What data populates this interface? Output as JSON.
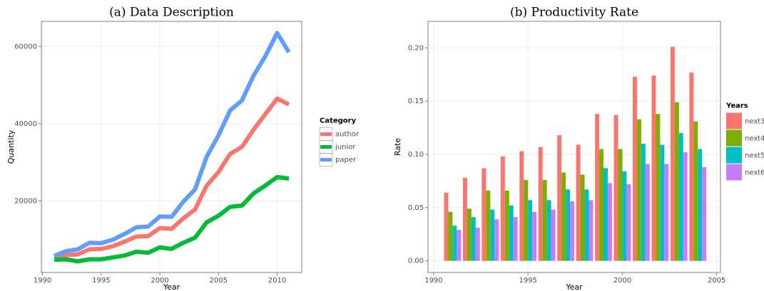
{
  "chart_data": [
    {
      "type": "line",
      "title": "(a) Data Description",
      "x_label": "Year",
      "y_label": "Quantity",
      "x": [
        1991,
        1992,
        1993,
        1994,
        1995,
        1996,
        1997,
        1998,
        1999,
        2000,
        2001,
        2002,
        2003,
        2004,
        2005,
        2006,
        2007,
        2008,
        2009,
        2010,
        2011
      ],
      "series": [
        {
          "name": "author",
          "color": "#F8766D",
          "values": [
            5500,
            6000,
            6200,
            7500,
            7600,
            8300,
            9500,
            10800,
            10900,
            13000,
            12800,
            15500,
            17800,
            24000,
            27500,
            32200,
            34000,
            38500,
            42500,
            46500,
            45000
          ]
        },
        {
          "name": "junior",
          "color": "#00BA38",
          "values": [
            4800,
            4900,
            4400,
            4900,
            4900,
            5400,
            5900,
            6900,
            6600,
            8000,
            7600,
            9200,
            10500,
            14500,
            16200,
            18500,
            18800,
            22000,
            24000,
            26200,
            25800
          ]
        },
        {
          "name": "paper",
          "color": "#619CFF",
          "values": [
            5800,
            7000,
            7500,
            9200,
            9100,
            10000,
            11500,
            13200,
            13400,
            16000,
            15900,
            19800,
            23000,
            31500,
            37000,
            43500,
            46000,
            52500,
            57500,
            63500,
            58500
          ]
        }
      ],
      "legend_title": "Category",
      "xlim": [
        1989.9,
        2012.1
      ],
      "xticks": [
        1990,
        1995,
        2000,
        2005,
        2010
      ],
      "ylim": [
        1500,
        66500
      ],
      "yticks": [
        20000,
        40000,
        60000
      ],
      "grid": true
    },
    {
      "type": "bar",
      "title": "(b) Productivity Rate",
      "x_label": "Year",
      "y_label": "Rate",
      "x": [
        1991,
        1992,
        1993,
        1994,
        1995,
        1996,
        1997,
        1998,
        1999,
        2000,
        2001,
        2002,
        2003,
        2004
      ],
      "series": [
        {
          "name": "next3",
          "color": "#F8766D",
          "values": [
            0.064,
            0.078,
            0.087,
            0.098,
            0.103,
            0.107,
            0.118,
            0.109,
            0.138,
            0.137,
            0.173,
            0.174,
            0.201,
            0.177
          ]
        },
        {
          "name": "next4",
          "color": "#7CAE00",
          "values": [
            0.046,
            0.049,
            0.066,
            0.066,
            0.076,
            0.076,
            0.083,
            0.081,
            0.105,
            0.105,
            0.133,
            0.138,
            0.149,
            0.131
          ]
        },
        {
          "name": "next5",
          "color": "#00BFC4",
          "values": [
            0.033,
            0.041,
            0.048,
            0.052,
            0.057,
            0.057,
            0.067,
            0.067,
            0.087,
            0.084,
            0.11,
            0.109,
            0.12,
            0.105
          ]
        },
        {
          "name": "next6",
          "color": "#C77CFF",
          "values": [
            0.029,
            0.031,
            0.039,
            0.041,
            0.046,
            0.048,
            0.056,
            0.057,
            0.073,
            0.072,
            0.091,
            0.091,
            0.102,
            0.088
          ]
        }
      ],
      "legend_title": "Years",
      "xlim": [
        1989.7,
        2005.2
      ],
      "xticks": [
        1990,
        1995,
        2000,
        2005
      ],
      "ylim": [
        -0.011,
        0.225
      ],
      "yticks": [
        {
          "value": 0,
          "label": "0.00"
        },
        0.05,
        {
          "value": 0.1,
          "label": "0.10"
        },
        0.15,
        {
          "value": 0.2,
          "label": "0.20"
        }
      ],
      "grid": true
    }
  ]
}
